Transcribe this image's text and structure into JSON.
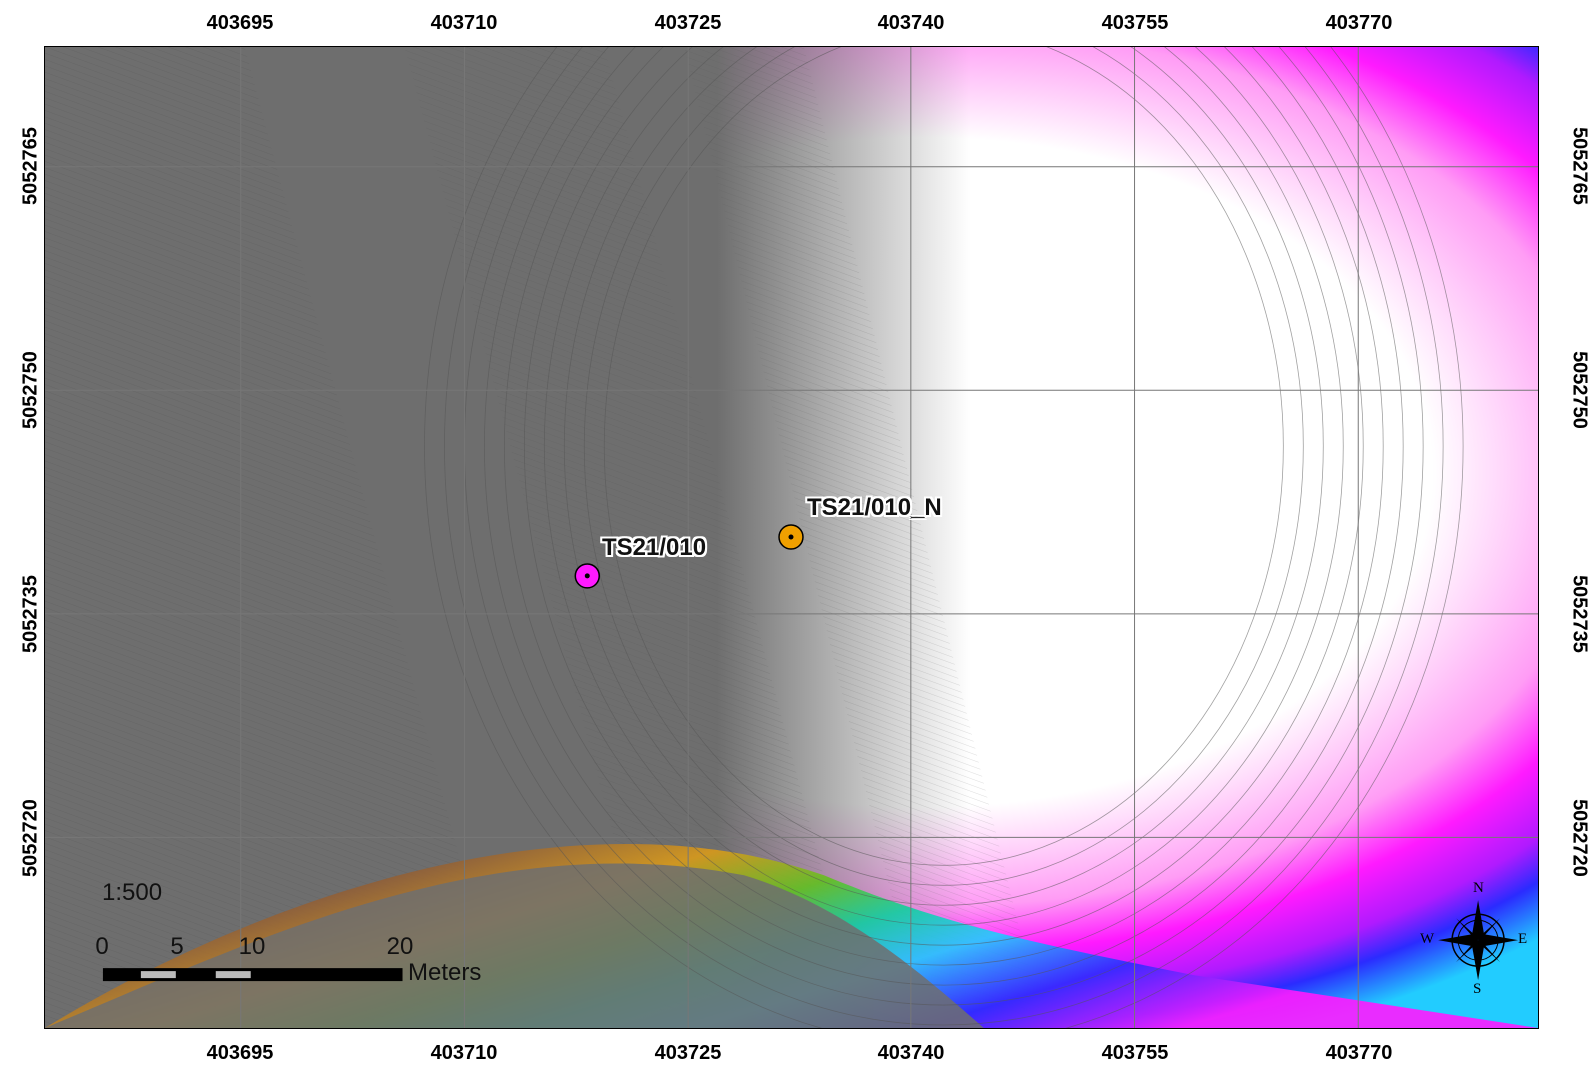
{
  "map": {
    "scale_text": "1:500",
    "scale_bar": {
      "ticks": [
        "0",
        "5",
        "10",
        "20"
      ],
      "unit": "Meters"
    },
    "easting_ticks": [
      "403695",
      "403710",
      "403725",
      "403740",
      "403755",
      "403770"
    ],
    "northing_ticks": [
      "5052765",
      "5052750",
      "5052735",
      "5052720"
    ],
    "points": [
      {
        "label": "TS21/010",
        "color": "#ff1aff"
      },
      {
        "label": "TS21/010_N",
        "color": "#f0a000"
      }
    ],
    "compass": {
      "n": "N",
      "s": "S",
      "e": "E",
      "w": "W"
    },
    "colors": {
      "flat_gray": "#6e6e6e",
      "contour_gray": "#4a4a4a",
      "magenta": "#ff1aff",
      "violet": "#9b1aff",
      "blue": "#2b2bff",
      "cyan": "#22ccff"
    }
  }
}
